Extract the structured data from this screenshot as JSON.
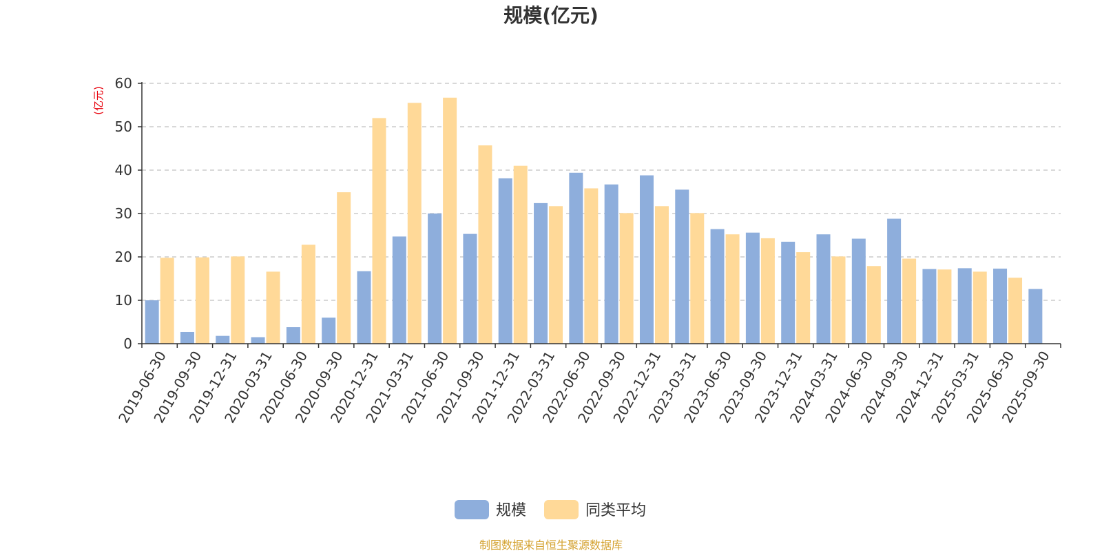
{
  "chart_data": {
    "type": "bar",
    "title": "规模(亿元)",
    "ylabel": "(亿元)",
    "xlabel": "",
    "ylim": [
      0,
      60
    ],
    "yticks": [
      0,
      10,
      20,
      30,
      40,
      50,
      60
    ],
    "categories": [
      "2019-06-30",
      "2019-09-30",
      "2019-12-31",
      "2020-03-31",
      "2020-06-30",
      "2020-09-30",
      "2020-12-31",
      "2021-03-31",
      "2021-06-30",
      "2021-09-30",
      "2021-12-31",
      "2022-03-31",
      "2022-06-30",
      "2022-09-30",
      "2022-12-31",
      "2023-03-31",
      "2023-06-30",
      "2023-09-30",
      "2023-12-31",
      "2024-03-31",
      "2024-06-30",
      "2024-09-30",
      "2024-12-31",
      "2025-03-31",
      "2025-06-30",
      "2025-09-30"
    ],
    "series": [
      {
        "name": "规模",
        "color": "#8eaedc",
        "values": [
          10.0,
          2.7,
          1.8,
          1.5,
          3.8,
          6.0,
          16.7,
          24.7,
          30.0,
          25.3,
          38.1,
          32.4,
          39.4,
          36.7,
          38.8,
          35.5,
          26.4,
          25.6,
          23.5,
          25.2,
          24.2,
          28.8,
          17.2,
          17.4,
          17.3,
          12.6
        ]
      },
      {
        "name": "同类平均",
        "color": "#ffd998",
        "values": [
          19.8,
          19.9,
          20.1,
          16.6,
          22.8,
          34.9,
          52.0,
          55.5,
          56.7,
          45.7,
          41.0,
          31.7,
          35.8,
          30.1,
          31.7,
          30.1,
          25.2,
          24.3,
          21.1,
          20.1,
          17.9,
          19.6,
          17.1,
          16.6,
          15.2,
          null
        ]
      }
    ],
    "grid": true,
    "legend_position": "bottom-center",
    "source_text": "制图数据来自恒生聚源数据库",
    "colors": {
      "title": "#333333",
      "axis": "#333333",
      "grid": "#cccccc",
      "unit": "#e8000b",
      "source": "#d4a230"
    }
  }
}
